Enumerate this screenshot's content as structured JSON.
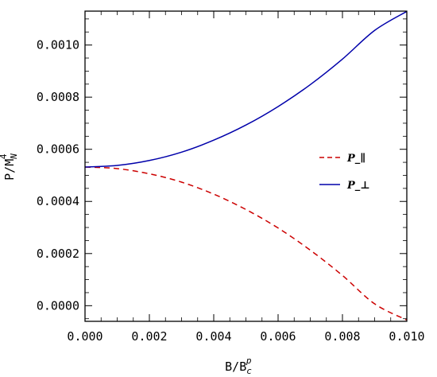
{
  "chart_data": {
    "type": "line",
    "xlabel": "B/B_c^p",
    "ylabel": "P/M_N^4",
    "xlim": [
      0.0,
      0.01
    ],
    "ylim": [
      -6e-05,
      0.00113
    ],
    "x_ticks": [
      "0.000",
      "0.002",
      "0.004",
      "0.006",
      "0.008",
      "0.010"
    ],
    "x_tick_values": [
      0.0,
      0.002,
      0.004,
      0.006,
      0.008,
      0.01
    ],
    "y_ticks": [
      "0.0000",
      "0.0002",
      "0.0004",
      "0.0006",
      "0.0008",
      "0.0010"
    ],
    "y_tick_values": [
      0.0,
      0.0002,
      0.0004,
      0.0006,
      0.0008,
      0.001
    ],
    "grid": false,
    "legend_position": "right-middle",
    "x": [
      0.0,
      0.001,
      0.002,
      0.003,
      0.004,
      0.005,
      0.006,
      0.007,
      0.008,
      0.009,
      0.01
    ],
    "series": [
      {
        "name": "P_∥",
        "style": "dashed",
        "color": "#cc0000",
        "values": [
          0.000532,
          0.000526,
          0.000506,
          0.000474,
          0.000428,
          0.000369,
          0.000298,
          0.000213,
          0.000116,
          7e-06,
          -5.5e-05
        ]
      },
      {
        "name": "P_⊥",
        "style": "solid",
        "color": "#0000aa",
        "values": [
          0.000532,
          0.000538,
          0.000557,
          0.000589,
          0.000635,
          0.000693,
          0.000764,
          0.000848,
          0.000946,
          0.001056,
          0.001129
        ]
      }
    ]
  }
}
